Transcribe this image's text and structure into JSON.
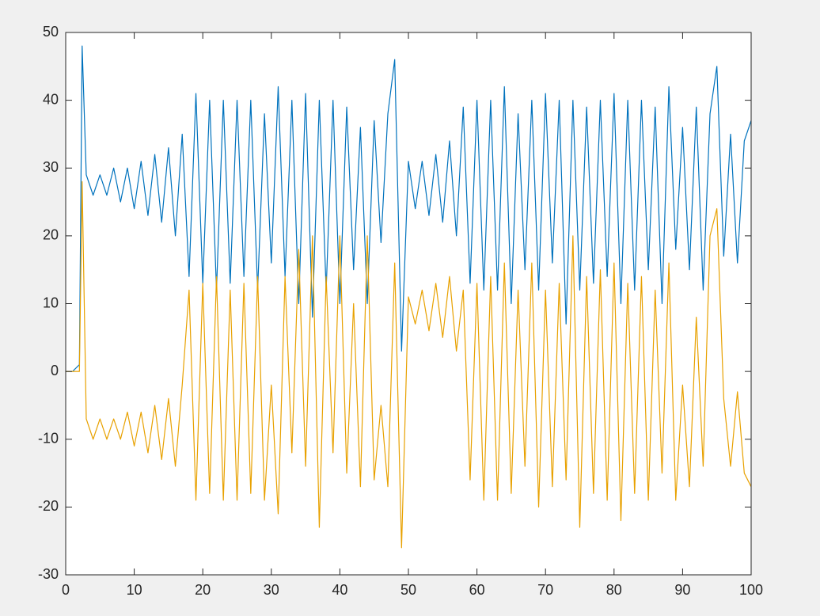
{
  "chart_data": {
    "type": "line",
    "x": [
      0,
      1,
      2,
      2.4,
      3,
      4,
      5,
      6,
      7,
      8,
      9,
      10,
      11,
      12,
      13,
      14,
      15,
      16,
      17,
      18,
      19,
      20,
      21,
      22,
      23,
      24,
      25,
      26,
      27,
      28,
      29,
      30,
      31,
      32,
      33,
      34,
      35,
      36,
      37,
      38,
      39,
      40,
      41,
      42,
      43,
      44,
      45,
      46,
      47,
      48,
      49,
      50,
      51,
      52,
      53,
      54,
      55,
      56,
      57,
      58,
      59,
      60,
      61,
      62,
      63,
      64,
      65,
      66,
      67,
      68,
      69,
      70,
      71,
      72,
      73,
      74,
      75,
      76,
      77,
      78,
      79,
      80,
      81,
      82,
      83,
      84,
      85,
      86,
      87,
      88,
      89,
      90,
      91,
      92,
      93,
      94,
      95,
      96,
      97,
      98,
      99,
      100
    ],
    "series": [
      {
        "color": "#0072bd",
        "values": [
          0,
          0,
          1,
          48,
          29,
          26,
          29,
          26,
          30,
          25,
          30,
          24,
          31,
          23,
          32,
          22,
          33,
          20,
          35,
          14,
          41,
          13,
          40,
          12,
          40,
          13,
          40,
          14,
          40,
          12,
          38,
          16,
          42,
          14,
          40,
          10,
          41,
          8,
          40,
          12,
          40,
          10,
          39,
          15,
          36,
          10,
          37,
          19,
          38,
          46,
          3,
          31,
          24,
          31,
          23,
          32,
          22,
          34,
          20,
          39,
          13,
          40,
          12,
          40,
          12,
          42,
          10,
          38,
          15,
          40,
          12,
          41,
          16,
          40,
          7,
          40,
          12,
          39,
          13,
          40,
          14,
          41,
          10,
          40,
          12,
          40,
          15,
          39,
          10,
          42,
          18,
          36,
          15,
          39,
          12,
          38,
          45,
          17,
          35,
          16,
          34,
          37
        ]
      },
      {
        "color": "#e8a100",
        "values": [
          0,
          0,
          0,
          28,
          -7,
          -10,
          -7,
          -10,
          -7,
          -10,
          -6,
          -11,
          -6,
          -12,
          -5,
          -13,
          -4,
          -14,
          -2,
          12,
          -19,
          13,
          -18,
          14,
          -19,
          12,
          -19,
          13,
          -18,
          14,
          -19,
          -2,
          -21,
          14,
          -12,
          18,
          -14,
          20,
          -23,
          14,
          -12,
          20,
          -15,
          10,
          -17,
          20,
          -16,
          -5,
          -17,
          16,
          -26,
          11,
          7,
          12,
          6,
          13,
          5,
          14,
          3,
          12,
          -16,
          13,
          -19,
          14,
          -19,
          16,
          -18,
          12,
          -14,
          16,
          -20,
          12,
          -17,
          13,
          -16,
          20,
          -23,
          14,
          -18,
          15,
          -19,
          16,
          -22,
          13,
          -18,
          14,
          -19,
          12,
          -15,
          16,
          -19,
          -2,
          -17,
          8,
          -14,
          20,
          24,
          -4,
          -14,
          -3,
          -15,
          -17
        ]
      }
    ],
    "xlim": [
      0,
      100
    ],
    "xticks": [
      0,
      10,
      20,
      30,
      40,
      50,
      60,
      70,
      80,
      90,
      100
    ],
    "ylim": [
      -30,
      50
    ],
    "yticks": [
      -30,
      -20,
      -10,
      0,
      10,
      20,
      30,
      40,
      50
    ]
  }
}
